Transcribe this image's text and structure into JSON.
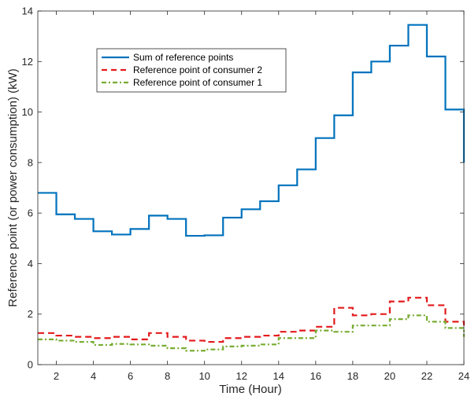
{
  "chart_data": {
    "type": "line",
    "xlabel": "Time (Hour)",
    "ylabel": "Reference point (or power consumption) (kW)",
    "xlim": [
      1,
      24
    ],
    "ylim": [
      0,
      14
    ],
    "xticks": [
      2,
      4,
      6,
      8,
      10,
      12,
      14,
      16,
      18,
      20,
      22,
      24
    ],
    "yticks": [
      0,
      2,
      4,
      6,
      8,
      10,
      12,
      14
    ],
    "x_tick_labels": [
      "2",
      "4",
      "6",
      "8",
      "10",
      "12",
      "14",
      "16",
      "18",
      "20",
      "22",
      "24"
    ],
    "y_tick_labels": [
      "0",
      "2",
      "4",
      "6",
      "8",
      "10",
      "12",
      "14"
    ],
    "grid": false,
    "legend_position": "upper-left",
    "step": true,
    "x": [
      1,
      2,
      3,
      4,
      5,
      6,
      7,
      8,
      9,
      10,
      11,
      12,
      13,
      14,
      15,
      16,
      17,
      18,
      19,
      20,
      21,
      22,
      23,
      24
    ],
    "series": [
      {
        "name": "Sum of reference points",
        "color": "#0072BD",
        "dash": "solid",
        "values": [
          6.8,
          5.95,
          5.77,
          5.28,
          5.15,
          5.37,
          5.9,
          5.77,
          5.1,
          5.12,
          5.82,
          6.15,
          6.47,
          7.1,
          7.73,
          8.97,
          9.87,
          11.57,
          12.0,
          12.63,
          13.45,
          12.2,
          10.1,
          8.0
        ]
      },
      {
        "name": "Reference point of consumer 2",
        "color": "#E31A1C",
        "dash": "dashed",
        "values": [
          1.25,
          1.15,
          1.1,
          1.05,
          1.1,
          1.0,
          1.25,
          1.1,
          0.95,
          0.9,
          1.05,
          1.1,
          1.15,
          1.3,
          1.35,
          1.5,
          2.25,
          1.95,
          2.0,
          2.5,
          2.65,
          2.35,
          1.7,
          1.55
        ]
      },
      {
        "name": "Reference point of consumer 1",
        "color": "#77AC30",
        "dash": "dashdot",
        "values": [
          1.0,
          0.95,
          0.9,
          0.78,
          0.82,
          0.8,
          0.75,
          0.65,
          0.55,
          0.6,
          0.72,
          0.75,
          0.8,
          1.05,
          1.05,
          1.35,
          1.3,
          1.55,
          1.55,
          1.8,
          1.95,
          1.7,
          1.45,
          1.1
        ]
      }
    ]
  }
}
